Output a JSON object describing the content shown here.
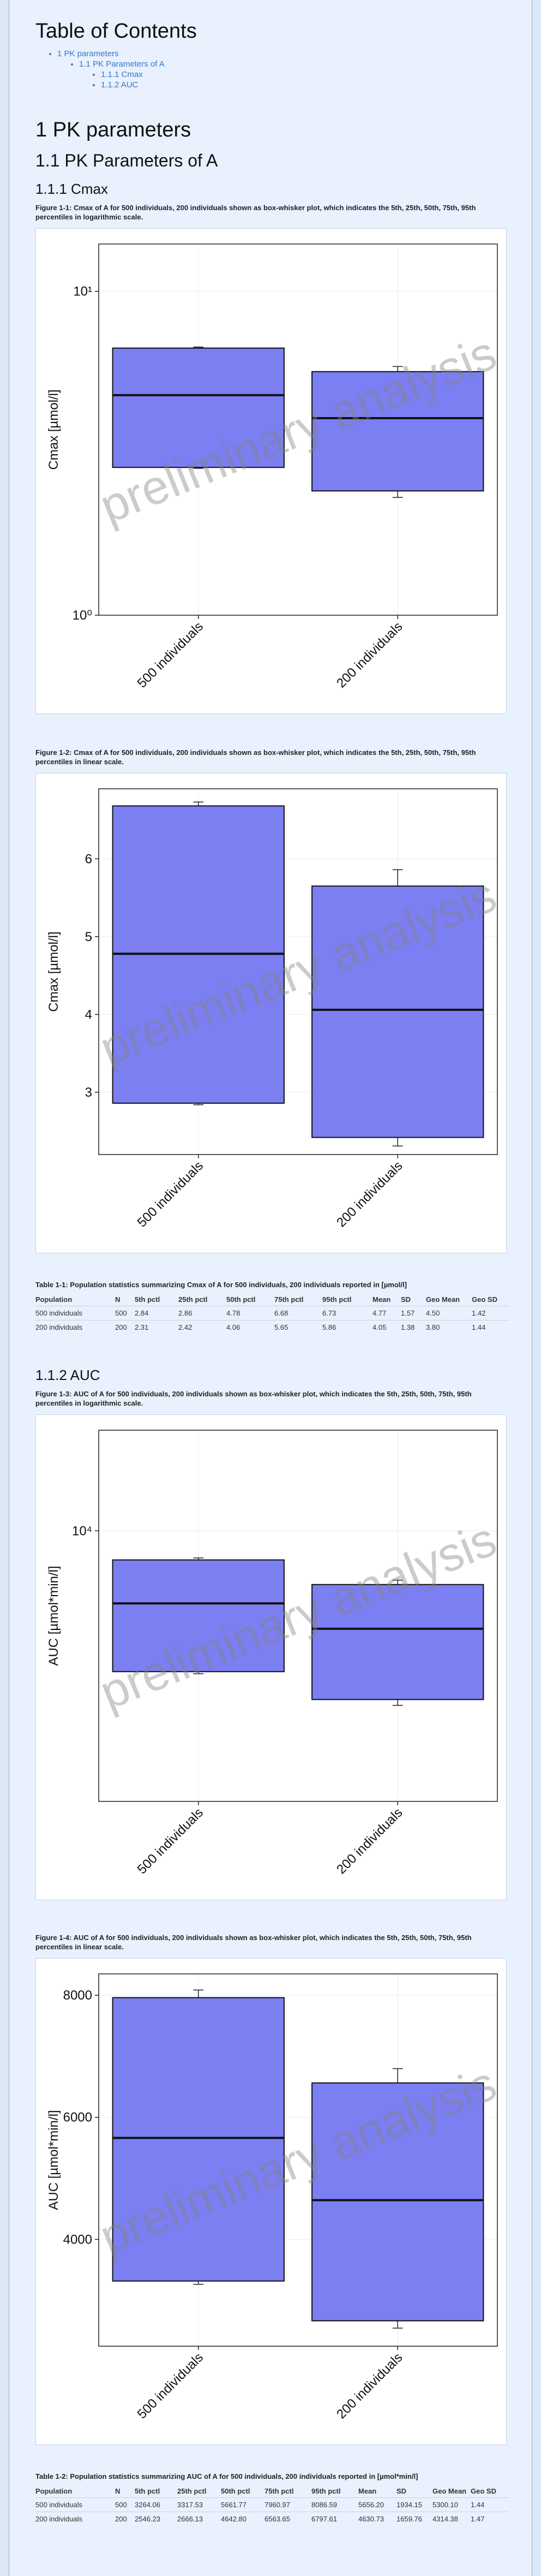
{
  "toc": {
    "title": "Table of Contents",
    "items": [
      "1 PK parameters",
      "1.1 PK Parameters of A",
      "1.1.1 Cmax",
      "1.1.2 AUC"
    ]
  },
  "section1": "1 PK parameters",
  "section11": "1.1 PK Parameters of A",
  "watermark": "preliminary analysis",
  "cmax": {
    "heading": "1.1.1 Cmax",
    "fig1_caption": "Figure 1-1: Cmax of A for 500 individuals, 200 individuals shown as box-whisker plot, which indicates the 5th, 25th, 50th, 75th, 95th percentiles in logarithmic scale.",
    "fig2_caption": "Figure 1-2: Cmax of A for 500 individuals, 200 individuals shown as box-whisker plot, which indicates the 5th, 25th, 50th, 75th, 95th percentiles in linear scale.",
    "table_caption": "Table 1-1: Population statistics summarizing Cmax of A for 500 individuals, 200 individuals reported in [µmol/l]",
    "headers": [
      "Population",
      "N",
      "5th pctl",
      "25th pctl",
      "50th pctl",
      "75th pctl",
      "95th pctl",
      "Mean",
      "SD",
      "Geo Mean",
      "Geo SD"
    ],
    "rows": [
      [
        "500 individuals",
        "500",
        "2.84",
        "2.86",
        "4.78",
        "6.68",
        "6.73",
        "4.77",
        "1.57",
        "4.50",
        "1.42"
      ],
      [
        "200 individuals",
        "200",
        "2.31",
        "2.42",
        "4.06",
        "5.65",
        "5.86",
        "4.05",
        "1.38",
        "3.80",
        "1.44"
      ]
    ]
  },
  "auc": {
    "heading": "1.1.2 AUC",
    "fig3_caption": "Figure 1-3: AUC of A for 500 individuals, 200 individuals shown as box-whisker plot, which indicates the 5th, 25th, 50th, 75th, 95th percentiles in logarithmic scale.",
    "fig4_caption": "Figure 1-4: AUC of A for 500 individuals, 200 individuals shown as box-whisker plot, which indicates the 5th, 25th, 50th, 75th, 95th percentiles in linear scale.",
    "table_caption": "Table 1-2: Population statistics summarizing AUC of A for 500 individuals, 200 individuals reported in [µmol*min/l]",
    "headers": [
      "Population",
      "N",
      "5th pctl",
      "25th pctl",
      "50th pctl",
      "75th pctl",
      "95th pctl",
      "Mean",
      "SD",
      "Geo Mean",
      "Geo SD"
    ],
    "rows": [
      [
        "500 individuals",
        "500",
        "3264.06",
        "3317.53",
        "5661.77",
        "7960.97",
        "8086.59",
        "5656.20",
        "1934.15",
        "5300.10",
        "1.44"
      ],
      [
        "200 individuals",
        "200",
        "2546.23",
        "2666.13",
        "4642.80",
        "6563.65",
        "6797.61",
        "4630.73",
        "1659.76",
        "4314.38",
        "1.47"
      ]
    ]
  },
  "chart_data": [
    {
      "type": "box",
      "id": "cmax-log",
      "scale": "log",
      "ylabel": "Cmax [µmol/l]",
      "ylim": [
        1,
        14
      ],
      "yticks": [
        1,
        10
      ],
      "yticklabels": [
        "10⁰",
        "10¹"
      ],
      "categories": [
        "500 individuals",
        "200 individuals"
      ],
      "boxes": [
        {
          "p5": 2.84,
          "p25": 2.86,
          "p50": 4.78,
          "p75": 6.68,
          "p95": 6.73
        },
        {
          "p5": 2.31,
          "p25": 2.42,
          "p50": 4.06,
          "p75": 5.65,
          "p95": 5.86
        }
      ],
      "fill": "#7b7ff2",
      "grid": true
    },
    {
      "type": "box",
      "id": "cmax-lin",
      "scale": "linear",
      "ylabel": "Cmax [µmol/l]",
      "ylim": [
        2.2,
        6.9
      ],
      "yticks": [
        3,
        4,
        5,
        6
      ],
      "yticklabels": [
        "3",
        "4",
        "5",
        "6"
      ],
      "categories": [
        "500 individuals",
        "200 individuals"
      ],
      "boxes": [
        {
          "p5": 2.84,
          "p25": 2.86,
          "p50": 4.78,
          "p75": 6.68,
          "p95": 6.73
        },
        {
          "p5": 2.31,
          "p25": 2.42,
          "p50": 4.06,
          "p75": 5.65,
          "p95": 5.86
        }
      ],
      "fill": "#7b7ff2",
      "grid": true
    },
    {
      "type": "box",
      "id": "auc-log",
      "scale": "log",
      "ylabel": "AUC [µmol*min/l]",
      "ylim": [
        1200,
        22000
      ],
      "yticks": [
        10000
      ],
      "yticklabels": [
        "10⁴"
      ],
      "categories": [
        "500 individuals",
        "200 individuals"
      ],
      "boxes": [
        {
          "p5": 3264.06,
          "p25": 3317.53,
          "p50": 5661.77,
          "p75": 7960.97,
          "p95": 8086.59
        },
        {
          "p5": 2546.23,
          "p25": 2666.13,
          "p50": 4642.8,
          "p75": 6563.65,
          "p95": 6797.61
        }
      ],
      "fill": "#7b7ff2",
      "grid": true
    },
    {
      "type": "box",
      "id": "auc-lin",
      "scale": "linear",
      "ylabel": "AUC [µmol*min/l]",
      "ylim": [
        2250,
        8350
      ],
      "yticks": [
        4000,
        6000,
        8000
      ],
      "yticklabels": [
        "4000",
        "6000",
        "8000"
      ],
      "categories": [
        "500 individuals",
        "200 individuals"
      ],
      "boxes": [
        {
          "p5": 3264.06,
          "p25": 3317.53,
          "p50": 5661.77,
          "p75": 7960.97,
          "p95": 8086.59
        },
        {
          "p5": 2546.23,
          "p25": 2666.13,
          "p50": 4642.8,
          "p75": 6563.65,
          "p95": 6797.61
        }
      ],
      "fill": "#7b7ff2",
      "grid": true
    }
  ]
}
